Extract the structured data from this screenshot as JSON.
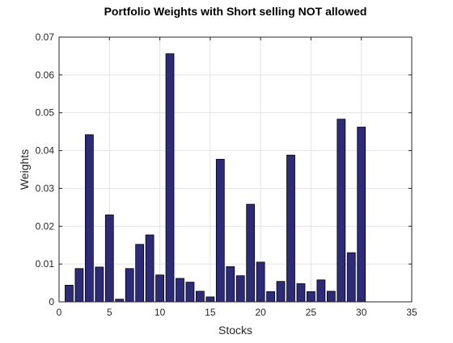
{
  "chart_data": {
    "type": "bar",
    "title": "Portfolio Weights with Short selling NOT allowed",
    "xlabel": "Stocks",
    "ylabel": "Weights",
    "xlim": [
      0,
      35
    ],
    "ylim": [
      0,
      0.07
    ],
    "x_ticks": [
      0,
      5,
      10,
      15,
      20,
      25,
      30,
      35
    ],
    "y_ticks": [
      0,
      0.01,
      0.02,
      0.03,
      0.04,
      0.05,
      0.06,
      0.07
    ],
    "x_tick_labels": [
      "0",
      "5",
      "10",
      "15",
      "20",
      "25",
      "30",
      "35"
    ],
    "y_tick_labels": [
      "0",
      "0.01",
      "0.02",
      "0.03",
      "0.04",
      "0.05",
      "0.06",
      "0.07"
    ],
    "grid": true,
    "bar_color": "#2e2a7a",
    "edge_color": "#000000",
    "x": [
      1,
      2,
      3,
      4,
      5,
      6,
      7,
      8,
      9,
      10,
      11,
      12,
      13,
      14,
      15,
      16,
      17,
      18,
      19,
      20,
      21,
      22,
      23,
      24,
      25,
      26,
      27,
      28,
      29,
      30
    ],
    "values": [
      0.0044,
      0.0088,
      0.0442,
      0.0092,
      0.023,
      0.0007,
      0.0088,
      0.0152,
      0.0177,
      0.0071,
      0.0656,
      0.0062,
      0.0052,
      0.0028,
      0.0013,
      0.0377,
      0.0093,
      0.0069,
      0.0258,
      0.0105,
      0.0027,
      0.0054,
      0.0388,
      0.0048,
      0.0027,
      0.0058,
      0.0028,
      0.0483,
      0.013,
      0.0462
    ]
  }
}
